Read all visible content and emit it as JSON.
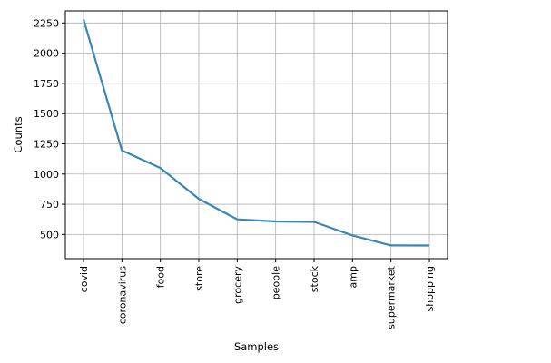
{
  "chart_data": {
    "type": "line",
    "title": "",
    "xlabel": "Samples",
    "ylabel": "Counts",
    "categories": [
      "covid",
      "coronavirus",
      "food",
      "store",
      "grocery",
      "people",
      "stock",
      "amp",
      "supermarket",
      "shopping"
    ],
    "series": [
      {
        "values": [
          2280,
          1195,
          1050,
          795,
          625,
          608,
          604,
          492,
          410,
          409
        ]
      }
    ],
    "ylim": [
      300,
      2350
    ],
    "yticks": [
      500,
      750,
      1000,
      1250,
      1500,
      1750,
      2000,
      2250
    ],
    "grid": true,
    "legend": "none",
    "line_color": "#3a87b5",
    "grid_color": "#b0b0b0"
  }
}
